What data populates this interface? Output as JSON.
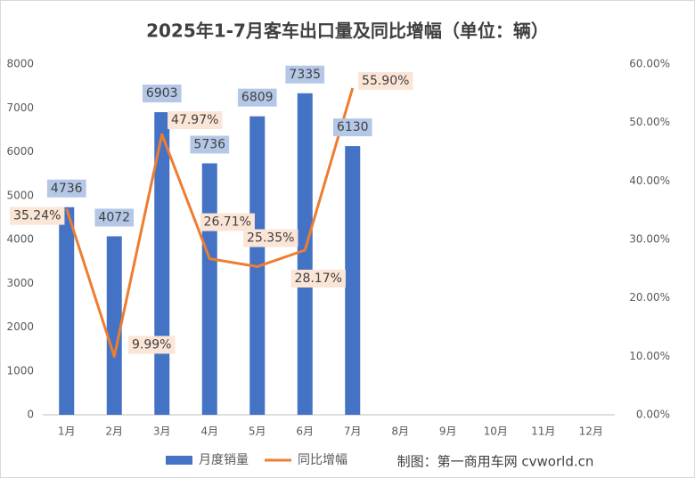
{
  "chart_data": {
    "type": "bar",
    "title": "2025年1-7月客车出口量及同比增幅（单位：辆）",
    "categories": [
      "1月",
      "2月",
      "3月",
      "4月",
      "5月",
      "6月",
      "7月",
      "8月",
      "9月",
      "10月",
      "11月",
      "12月"
    ],
    "series": [
      {
        "name": "月度销量",
        "color": "#4472c4",
        "values": [
          4736,
          4072,
          6903,
          5736,
          6809,
          7335,
          6130,
          null,
          null,
          null,
          null,
          null
        ]
      },
      {
        "name": "同比增幅",
        "type": "line",
        "axis": "y2",
        "color": "#ed7d31",
        "values": [
          35.24,
          9.99,
          47.97,
          26.71,
          25.35,
          28.17,
          55.9,
          null,
          null,
          null,
          null,
          null
        ],
        "value_labels": [
          "35.24%",
          "9.99%",
          "47.97%",
          "26.71%",
          "25.35%",
          "28.17%",
          "55.90%",
          null,
          null,
          null,
          null,
          null
        ]
      }
    ],
    "ylim": [
      0,
      8000
    ],
    "yticks": [
      0,
      1000,
      2000,
      3000,
      4000,
      5000,
      6000,
      7000,
      8000
    ],
    "y2lim": [
      0,
      60
    ],
    "y2ticks": [
      {
        "value": 0,
        "label": "0.00%"
      },
      {
        "value": 10,
        "label": "10.00%"
      },
      {
        "value": 20,
        "label": "20.00%"
      },
      {
        "value": 30,
        "label": "30.00%"
      },
      {
        "value": 40,
        "label": "40.00%"
      },
      {
        "value": 50,
        "label": "50.00%"
      },
      {
        "value": 60,
        "label": "60.00%"
      }
    ],
    "legend": "bottom",
    "annotation": "制图：第一商用车网 cvworld.cn"
  }
}
